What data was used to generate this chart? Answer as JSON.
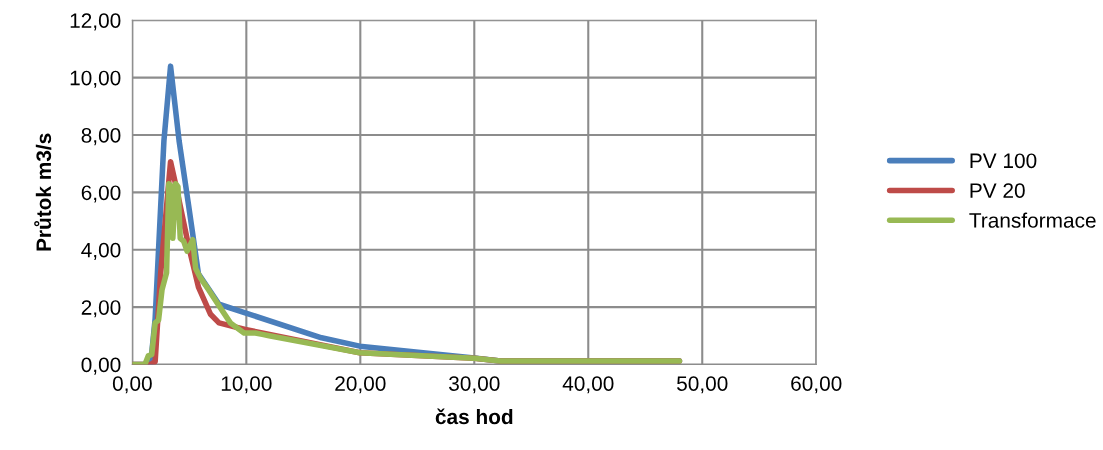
{
  "chart_data": {
    "type": "line",
    "xlabel": "čas hod",
    "ylabel": "Průtok m3/s",
    "xlim": [
      0,
      60
    ],
    "ylim": [
      0,
      12
    ],
    "xticks": [
      {
        "value": 0,
        "label": "0,00"
      },
      {
        "value": 10,
        "label": "10,00"
      },
      {
        "value": 20,
        "label": "20,00"
      },
      {
        "value": 30,
        "label": "30,00"
      },
      {
        "value": 40,
        "label": "40,00"
      },
      {
        "value": 50,
        "label": "50,00"
      },
      {
        "value": 60,
        "label": "60,00"
      }
    ],
    "yticks": [
      {
        "value": 0,
        "label": "0,00"
      },
      {
        "value": 2,
        "label": "2,00"
      },
      {
        "value": 4,
        "label": "4,00"
      },
      {
        "value": 6,
        "label": "6,00"
      },
      {
        "value": 8,
        "label": "8,00"
      },
      {
        "value": 10,
        "label": "10,00"
      },
      {
        "value": 12,
        "label": "12,00"
      }
    ],
    "grid": true,
    "legend": "right",
    "marker": "none",
    "line_style": "solid",
    "series": [
      {
        "name": "PV 100",
        "color": "#4a7ebb",
        "x": [
          0,
          1.6,
          2.0,
          2.77,
          3.35,
          4.1,
          4.95,
          5.8,
          7.6,
          9.9,
          16.6,
          19.95,
          30,
          32.3,
          48
        ],
        "values": [
          0,
          0,
          1.6,
          7.8,
          10.4,
          7.8,
          5.5,
          3.16,
          2.1,
          1.8,
          0.93,
          0.64,
          0.23,
          0.12,
          0.12
        ]
      },
      {
        "name": "PV 20",
        "color": "#be4b48",
        "x": [
          0,
          1.6,
          2.0,
          2.48,
          3.35,
          3.9,
          4.95,
          5.8,
          6.86,
          7.6,
          9.9,
          19.95,
          30,
          32.3,
          48
        ],
        "values": [
          0,
          0,
          0.1,
          3.16,
          7.07,
          6.1,
          4.1,
          2.7,
          1.75,
          1.45,
          1.22,
          0.41,
          0.22,
          0.12,
          0.12
        ]
      },
      {
        "name": "Transformace",
        "color": "#98b954",
        "x": [
          0,
          1.1,
          1.4,
          1.7,
          2.0,
          2.3,
          2.6,
          3.0,
          3.2,
          3.45,
          3.55,
          3.8,
          4.0,
          4.2,
          4.5,
          4.8,
          5.3,
          5.55,
          6.0,
          6.7,
          7.6,
          8.6,
          9.8,
          10.8,
          11.4,
          12.0,
          19.95,
          30,
          32.3,
          48
        ],
        "values": [
          0,
          0,
          0.3,
          0.35,
          1.45,
          1.55,
          2.6,
          3.2,
          6.3,
          6.2,
          4.4,
          6.3,
          6.2,
          4.4,
          4.3,
          3.95,
          4.35,
          3.35,
          3.0,
          2.6,
          2.05,
          1.45,
          1.1,
          1.1,
          1.05,
          1.0,
          0.41,
          0.22,
          0.12,
          0.12
        ]
      }
    ]
  }
}
